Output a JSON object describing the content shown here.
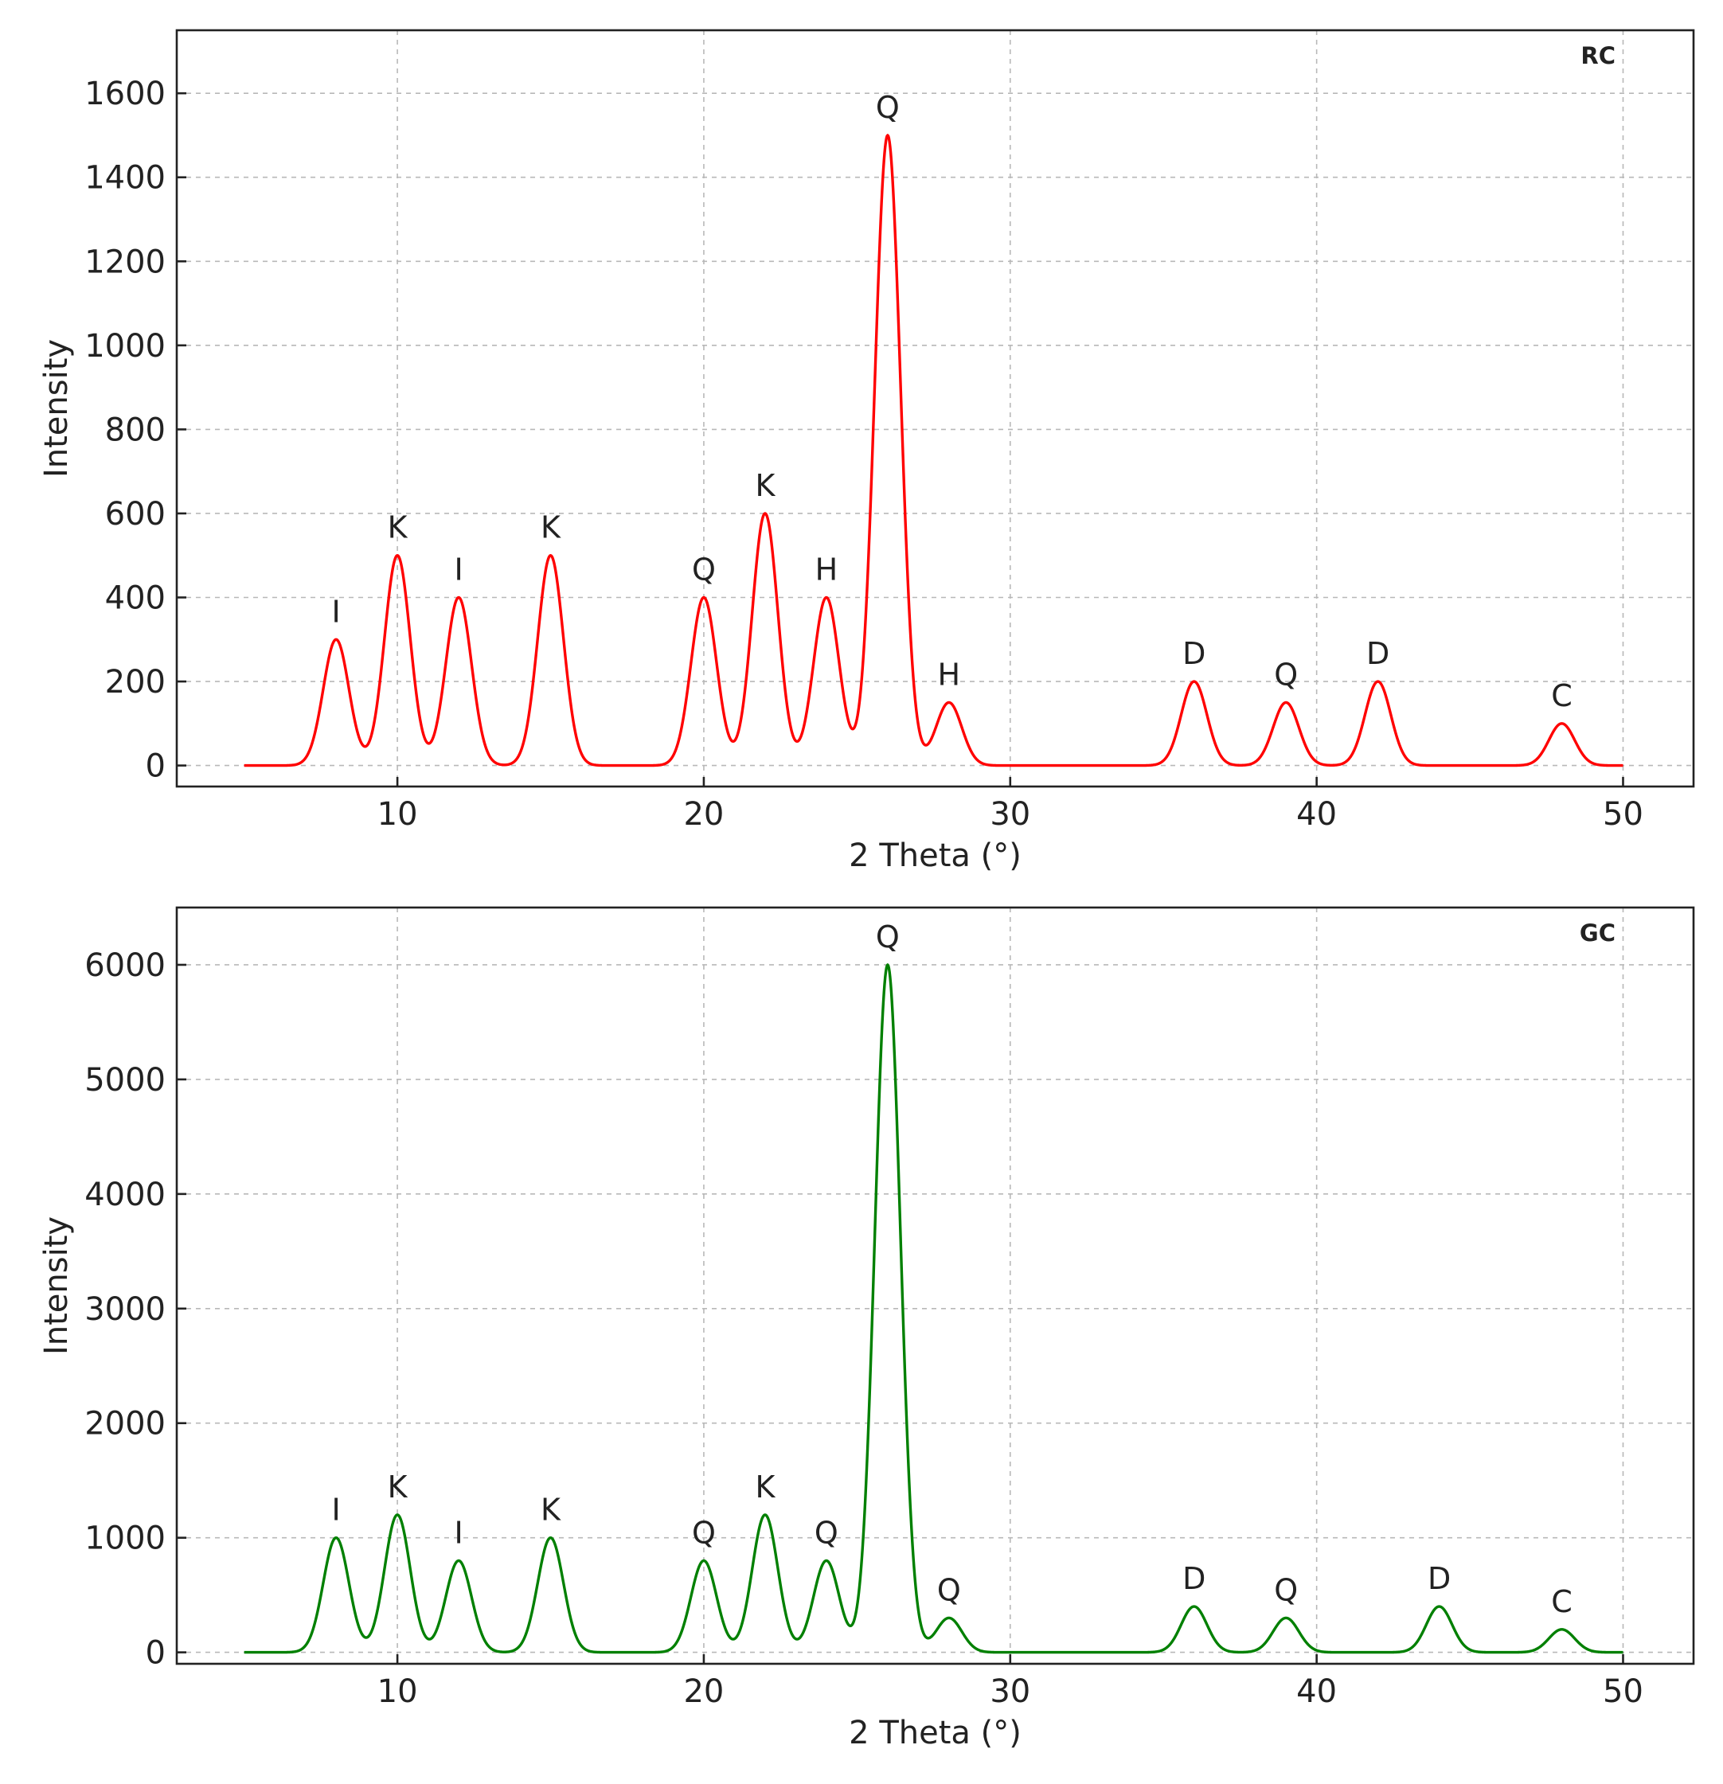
{
  "chart_data": [
    {
      "type": "line",
      "panel_label": "RC",
      "xlabel": "2 Theta (°)",
      "ylabel": "Intensity",
      "xlim": [
        2.8,
        52.3
      ],
      "ylim": [
        -50,
        1750
      ],
      "xticks": [
        10,
        20,
        30,
        40,
        50
      ],
      "yticks": [
        0,
        200,
        400,
        600,
        800,
        1000,
        1200,
        1400,
        1600
      ],
      "grid": true,
      "line_color": "#ff0000",
      "x_range": [
        5,
        50
      ],
      "peak_width": 0.42,
      "peaks": [
        {
          "x": 8,
          "y": 300,
          "label": "I"
        },
        {
          "x": 10,
          "y": 500,
          "label": "K"
        },
        {
          "x": 12,
          "y": 400,
          "label": "I"
        },
        {
          "x": 15,
          "y": 500,
          "label": "K"
        },
        {
          "x": 20,
          "y": 400,
          "label": "Q"
        },
        {
          "x": 22,
          "y": 600,
          "label": "K"
        },
        {
          "x": 24,
          "y": 400,
          "label": "H"
        },
        {
          "x": 26,
          "y": 1500,
          "label": "Q"
        },
        {
          "x": 28,
          "y": 150,
          "label": "H"
        },
        {
          "x": 36,
          "y": 200,
          "label": "D"
        },
        {
          "x": 39,
          "y": 150,
          "label": "Q"
        },
        {
          "x": 42,
          "y": 200,
          "label": "D"
        },
        {
          "x": 48,
          "y": 100,
          "label": "C"
        }
      ]
    },
    {
      "type": "line",
      "panel_label": "GC",
      "xlabel": "2 Theta (°)",
      "ylabel": "Intensity",
      "xlim": [
        2.8,
        52.3
      ],
      "ylim": [
        -100,
        6500
      ],
      "xticks": [
        10,
        20,
        30,
        40,
        50
      ],
      "yticks": [
        0,
        1000,
        2000,
        3000,
        4000,
        5000,
        6000
      ],
      "grid": true,
      "line_color": "#008000",
      "x_range": [
        5,
        50
      ],
      "peak_width": 0.42,
      "peaks": [
        {
          "x": 8,
          "y": 1000,
          "label": "I"
        },
        {
          "x": 10,
          "y": 1200,
          "label": "K"
        },
        {
          "x": 12,
          "y": 800,
          "label": "I"
        },
        {
          "x": 15,
          "y": 1000,
          "label": "K"
        },
        {
          "x": 20,
          "y": 800,
          "label": "Q"
        },
        {
          "x": 22,
          "y": 1200,
          "label": "K"
        },
        {
          "x": 24,
          "y": 800,
          "label": "Q"
        },
        {
          "x": 26,
          "y": 6000,
          "label": "Q"
        },
        {
          "x": 28,
          "y": 300,
          "label": "Q"
        },
        {
          "x": 36,
          "y": 400,
          "label": "D"
        },
        {
          "x": 39,
          "y": 300,
          "label": "Q"
        },
        {
          "x": 44,
          "y": 400,
          "label": "D"
        },
        {
          "x": 48,
          "y": 200,
          "label": "C"
        }
      ]
    }
  ]
}
